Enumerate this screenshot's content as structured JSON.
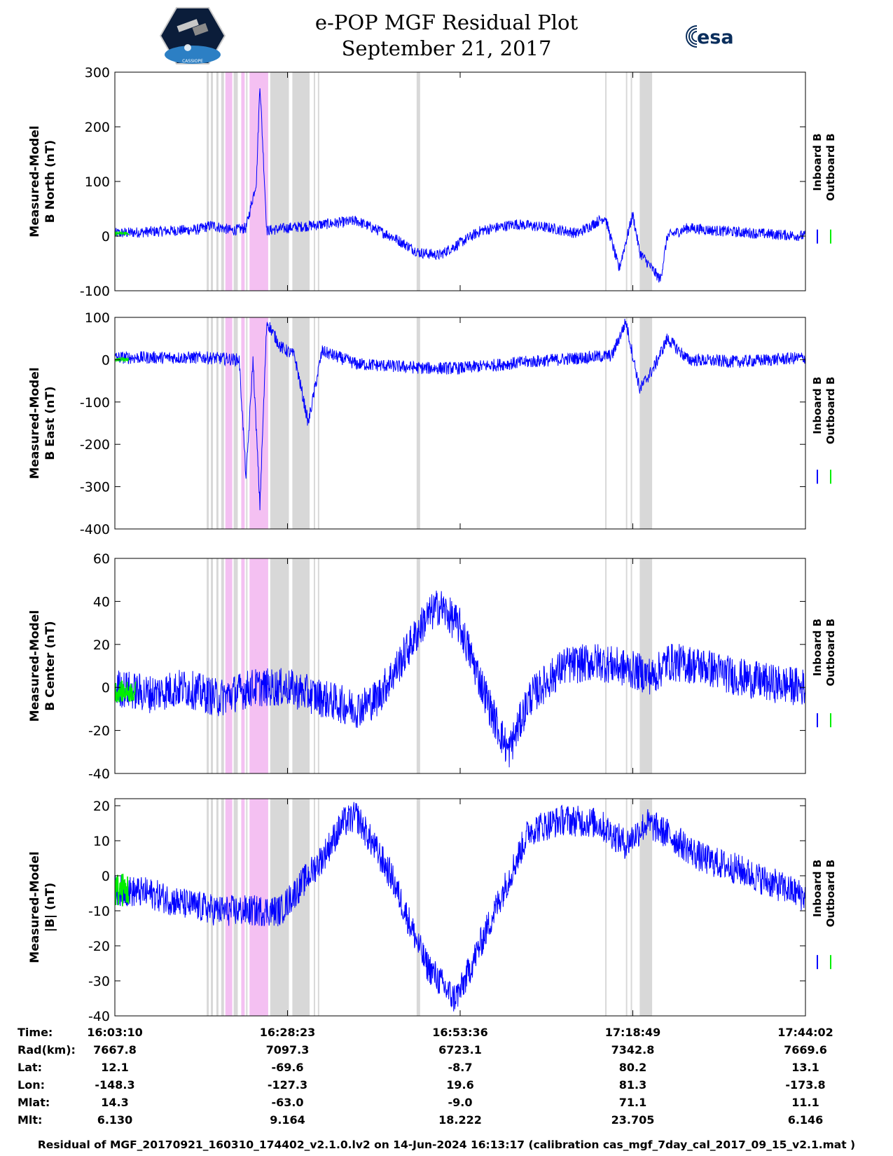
{
  "header": {
    "title_line1": "e-POP MGF Residual Plot",
    "title_line2": "September 21, 2017",
    "logo_left_text": "CASSIOPE",
    "logo_right_text": "esa"
  },
  "colors": {
    "inboard": "#0000ff",
    "outboard": "#00ee00",
    "shade_gray": "#d8d8d8",
    "shade_pink": "#f4c0f2"
  },
  "chart_data": [
    {
      "type": "line",
      "title": "",
      "ylabel": [
        "Measured-Model",
        "B North (nT)"
      ],
      "ylim": [
        -100,
        300
      ],
      "yticks": [
        -100,
        0,
        100,
        200,
        300
      ],
      "legend": [
        "Inboard B",
        "Outboard B"
      ],
      "series": [
        {
          "name": "Inboard B",
          "color": "#0000ff",
          "x": [
            0,
            0.05,
            0.12,
            0.14,
            0.17,
            0.19,
            0.205,
            0.21,
            0.22,
            0.25,
            0.29,
            0.35,
            0.4,
            0.44,
            0.47,
            0.53,
            0.58,
            0.63,
            0.67,
            0.71,
            0.73,
            0.75,
            0.76,
            0.79,
            0.8,
            0.83,
            0.87,
            0.93,
            1.0
          ],
          "y": [
            5,
            8,
            12,
            20,
            10,
            15,
            100,
            280,
            10,
            15,
            20,
            28,
            0,
            -30,
            -35,
            10,
            22,
            15,
            5,
            35,
            -60,
            40,
            -30,
            -80,
            0,
            15,
            10,
            5,
            0
          ],
          "noise": 10
        },
        {
          "name": "Outboard B",
          "color": "#00ee00",
          "x": [
            0,
            0.02
          ],
          "y": [
            5,
            5
          ],
          "noise": 3
        }
      ]
    },
    {
      "type": "line",
      "title": "",
      "ylabel": [
        "Measured-Model",
        "B East (nT)"
      ],
      "ylim": [
        -400,
        100
      ],
      "yticks": [
        -400,
        -300,
        -200,
        -100,
        0,
        100
      ],
      "legend": [
        "Inboard B",
        "Outboard B"
      ],
      "series": [
        {
          "name": "Inboard B",
          "color": "#0000ff",
          "x": [
            0,
            0.1,
            0.13,
            0.18,
            0.19,
            0.2,
            0.21,
            0.22,
            0.24,
            0.26,
            0.28,
            0.3,
            0.35,
            0.45,
            0.5,
            0.6,
            0.68,
            0.72,
            0.74,
            0.76,
            0.78,
            0.8,
            0.83,
            0.9,
            1.0
          ],
          "y": [
            5,
            5,
            5,
            0,
            -280,
            0,
            -345,
            90,
            30,
            10,
            -150,
            20,
            -10,
            -20,
            -20,
            -5,
            5,
            10,
            90,
            -70,
            -20,
            50,
            0,
            -5,
            5
          ],
          "noise": 15
        },
        {
          "name": "Outboard B",
          "color": "#00ee00",
          "x": [
            0,
            0.02
          ],
          "y": [
            0,
            0
          ],
          "noise": 4
        }
      ]
    },
    {
      "type": "line",
      "title": "",
      "ylabel": [
        "Measured-Model",
        "B Center (nT)"
      ],
      "ylim": [
        -40,
        60
      ],
      "yticks": [
        -40,
        -20,
        0,
        20,
        40,
        60
      ],
      "legend": [
        "Inboard B",
        "Outboard B"
      ],
      "series": [
        {
          "name": "Inboard B",
          "color": "#0000ff",
          "x": [
            0,
            0.05,
            0.1,
            0.15,
            0.2,
            0.25,
            0.3,
            0.35,
            0.38,
            0.41,
            0.45,
            0.47,
            0.5,
            0.55,
            0.57,
            0.6,
            0.65,
            0.7,
            0.75,
            0.78,
            0.8,
            0.85,
            0.9,
            0.95,
            1.0
          ],
          "y": [
            0,
            -3,
            0,
            -5,
            0,
            0,
            -5,
            -10,
            -5,
            10,
            32,
            38,
            28,
            -15,
            -30,
            -5,
            10,
            12,
            8,
            5,
            12,
            10,
            5,
            2,
            0
          ],
          "noise": 9
        },
        {
          "name": "Outboard B",
          "color": "#00ee00",
          "x": [
            0,
            0.03
          ],
          "y": [
            -2,
            -2
          ],
          "noise": 5
        }
      ]
    },
    {
      "type": "line",
      "title": "",
      "ylabel": [
        "Measured-Model",
        "|B| (nT)"
      ],
      "ylim": [
        -40,
        22
      ],
      "yticks": [
        -40,
        -30,
        -20,
        -10,
        0,
        10,
        20
      ],
      "legend": [
        "Inboard B",
        "Outboard B"
      ],
      "series": [
        {
          "name": "Inboard B",
          "color": "#0000ff",
          "x": [
            0,
            0.05,
            0.1,
            0.15,
            0.2,
            0.24,
            0.3,
            0.33,
            0.35,
            0.4,
            0.45,
            0.49,
            0.5,
            0.55,
            0.6,
            0.65,
            0.7,
            0.74,
            0.77,
            0.8,
            0.85,
            0.9,
            0.95,
            1.0
          ],
          "y": [
            -4,
            -5,
            -8,
            -10,
            -10,
            -10,
            5,
            15,
            17,
            0,
            -25,
            -35,
            -33,
            -10,
            13,
            16,
            15,
            9,
            15,
            12,
            5,
            2,
            -2,
            -6
          ],
          "noise": 4.5
        },
        {
          "name": "Outboard B",
          "color": "#00ee00",
          "x": [
            0,
            0.02
          ],
          "y": [
            -4,
            -4
          ],
          "noise": 5
        }
      ]
    }
  ],
  "shading": {
    "gray_bands": [
      [
        0.133,
        0.136
      ],
      [
        0.139,
        0.142
      ],
      [
        0.147,
        0.15
      ],
      [
        0.154,
        0.158
      ],
      [
        0.172,
        0.178
      ],
      [
        0.19,
        0.192
      ],
      [
        0.225,
        0.252
      ],
      [
        0.257,
        0.282
      ],
      [
        0.288,
        0.29
      ],
      [
        0.294,
        0.296
      ],
      [
        0.437,
        0.442
      ],
      [
        0.71,
        0.712
      ],
      [
        0.74,
        0.742
      ],
      [
        0.747,
        0.749
      ],
      [
        0.76,
        0.778
      ]
    ],
    "pink_bands": [
      [
        0.16,
        0.17
      ],
      [
        0.183,
        0.188
      ],
      [
        0.195,
        0.222
      ]
    ]
  },
  "time_axis": {
    "row_labels": [
      "Time:",
      "Rad(km):",
      "Lat:",
      "Lon:",
      "Mlat:",
      "Mlt:"
    ],
    "columns": [
      [
        "16:03:10",
        "7667.8",
        "12.1",
        "-148.3",
        "14.3",
        "6.130"
      ],
      [
        "16:28:23",
        "7097.3",
        "-69.6",
        "-127.3",
        "-63.0",
        "9.164"
      ],
      [
        "16:53:36",
        "6723.1",
        "-8.7",
        "19.6",
        "-9.0",
        "18.222"
      ],
      [
        "17:18:49",
        "7342.8",
        "80.2",
        "81.3",
        "71.1",
        "23.705"
      ],
      [
        "17:44:02",
        "7669.6",
        "13.1",
        "-173.8",
        "11.1",
        "6.146"
      ]
    ]
  },
  "footer": {
    "text": "Residual of MGF_20170921_160310_174402_v2.1.0.lv2 on 14-Jun-2024 16:13:17 (calibration cas_mgf_7day_cal_2017_09_15_v2.1.mat )"
  }
}
